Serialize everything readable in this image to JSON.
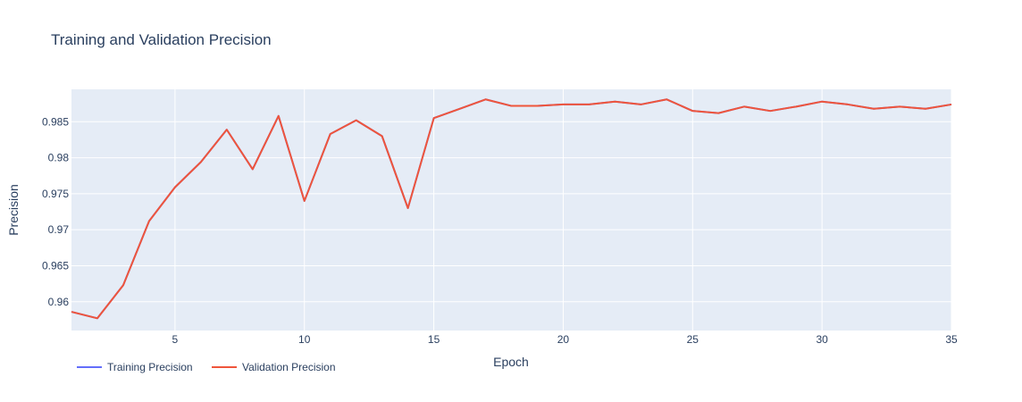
{
  "colors": {
    "plot_bg": "#e5ecf6",
    "grid": "#ffffff",
    "text": "#2a3f5f",
    "training": "#636efa",
    "validation": "#ef553b"
  },
  "chart_data": {
    "type": "line",
    "title": "Training and Validation Precision",
    "xlabel": "Epoch",
    "ylabel": "Precision",
    "xlim": [
      1,
      35
    ],
    "ylim": [
      0.956,
      0.9895
    ],
    "x_ticks": [
      5,
      10,
      15,
      20,
      25,
      30,
      35
    ],
    "y_ticks": [
      0.96,
      0.965,
      0.97,
      0.975,
      0.98,
      0.985
    ],
    "y_tick_labels": [
      "0.96",
      "0.965",
      "0.97",
      "0.975",
      "0.98",
      "0.985"
    ],
    "grid": true,
    "legend": "bottom-left, horizontal",
    "x": [
      1,
      2,
      3,
      4,
      5,
      6,
      7,
      8,
      9,
      10,
      11,
      12,
      13,
      14,
      15,
      16,
      17,
      18,
      19,
      20,
      21,
      22,
      23,
      24,
      25,
      26,
      27,
      28,
      29,
      30,
      31,
      32,
      33,
      34,
      35
    ],
    "series": [
      {
        "name": "Training Precision",
        "color_key": "training",
        "values": [
          0.9586,
          0.9577,
          0.9623,
          0.9712,
          0.9759,
          0.9794,
          0.9839,
          0.9784,
          0.9858,
          0.974,
          0.9833,
          0.9852,
          0.983,
          0.973,
          0.9855,
          0.9868,
          0.9881,
          0.9872,
          0.9872,
          0.9874,
          0.9874,
          0.9878,
          0.9874,
          0.9881,
          0.9865,
          0.9862,
          0.9871,
          0.9865,
          0.9871,
          0.9878,
          0.9874,
          0.9868,
          0.9871,
          0.9868,
          0.9874
        ]
      },
      {
        "name": "Validation Precision",
        "color_key": "validation",
        "values": [
          0.9586,
          0.9577,
          0.9623,
          0.9712,
          0.9759,
          0.9794,
          0.9839,
          0.9784,
          0.9858,
          0.974,
          0.9833,
          0.9852,
          0.983,
          0.973,
          0.9855,
          0.9868,
          0.9881,
          0.9872,
          0.9872,
          0.9874,
          0.9874,
          0.9878,
          0.9874,
          0.9881,
          0.9865,
          0.9862,
          0.9871,
          0.9865,
          0.9871,
          0.9878,
          0.9874,
          0.9868,
          0.9871,
          0.9868,
          0.9874
        ]
      }
    ]
  }
}
